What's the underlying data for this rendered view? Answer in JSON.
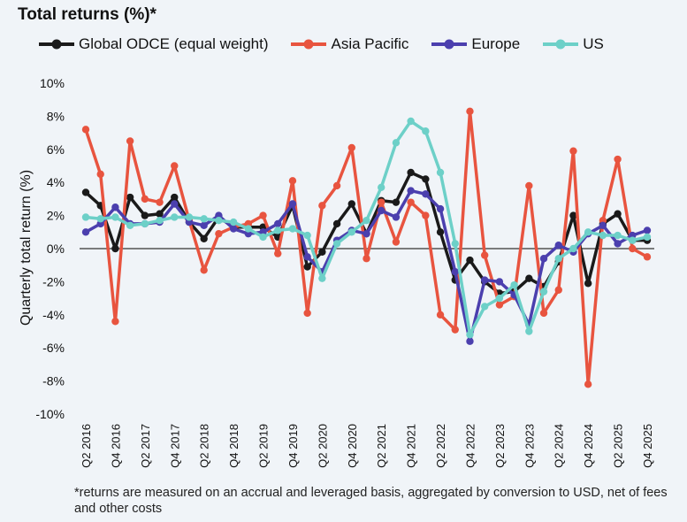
{
  "chart_data": {
    "type": "line",
    "title": "Total returns (%)*",
    "ylabel": "Quarterly total return (%)",
    "xlabel": "",
    "ylim": [
      -10,
      10
    ],
    "yticks": [
      10,
      8,
      6,
      4,
      2,
      0,
      -2,
      -4,
      -6,
      -8,
      -10
    ],
    "ytick_labels": [
      "10%",
      "8%",
      "6%",
      "4%",
      "2%",
      "0%",
      "-2%",
      "-4%",
      "-6%",
      "-8%",
      "-10%"
    ],
    "x": [
      "Q2 2016",
      "Q3 2016",
      "Q4 2016",
      "Q1 2017",
      "Q2 2017",
      "Q3 2017",
      "Q4 2017",
      "Q1 2018",
      "Q2 2018",
      "Q3 2018",
      "Q4 2018",
      "Q1 2019",
      "Q2 2019",
      "Q3 2019",
      "Q4 2019",
      "Q1 2020",
      "Q2 2020",
      "Q3 2020",
      "Q4 2020",
      "Q1 2021",
      "Q2 2021",
      "Q3 2021",
      "Q4 2021",
      "Q1 2022",
      "Q2 2022",
      "Q3 2022",
      "Q4 2022",
      "Q1 2023",
      "Q2 2023",
      "Q3 2023",
      "Q4 2023",
      "Q1 2024",
      "Q2 2024",
      "Q3 2024",
      "Q4 2024",
      "Q1 2025",
      "Q2 2025",
      "Q3 2025",
      "Q4 2025"
    ],
    "xtick_labels": [
      "Q2 2016",
      "Q4 2016",
      "Q2 2017",
      "Q4 2017",
      "Q2 2018",
      "Q4 2018",
      "Q2 2019",
      "Q4 2019",
      "Q2 2020",
      "Q4 2020",
      "Q2 2021",
      "Q4 2021",
      "Q2 2022",
      "Q4 2022",
      "Q2 2023",
      "Q4 2023",
      "Q2 2024",
      "Q4 2024",
      "Q2 2025",
      "Q4 2025"
    ],
    "legend_position": "top",
    "series": [
      {
        "name": "Global ODCE (equal weight)",
        "color": "#1a1a1a",
        "values": [
          3.4,
          2.6,
          0.0,
          3.1,
          2.0,
          2.1,
          3.1,
          1.6,
          0.6,
          1.9,
          1.3,
          1.3,
          1.3,
          0.7,
          2.6,
          -1.1,
          -0.2,
          1.5,
          2.7,
          0.9,
          2.9,
          2.8,
          4.6,
          4.2,
          1.0,
          -1.9,
          -0.7,
          -2.0,
          -2.7,
          -2.6,
          -1.8,
          -2.3,
          -0.8,
          2.0,
          -2.1,
          1.5,
          2.1,
          0.5,
          0.5
        ]
      },
      {
        "name": "Asia Pacific",
        "color": "#e8543f",
        "values": [
          7.2,
          4.5,
          -4.4,
          6.5,
          3.0,
          2.8,
          5.0,
          1.7,
          -1.3,
          0.9,
          1.3,
          1.5,
          2.0,
          -0.3,
          4.1,
          -3.9,
          2.6,
          3.8,
          6.1,
          -0.6,
          2.8,
          0.4,
          2.8,
          2.0,
          -4.0,
          -4.9,
          8.3,
          -0.4,
          -3.4,
          -2.9,
          3.8,
          -3.9,
          -2.5,
          5.9,
          -8.2,
          1.7,
          5.4,
          0.0,
          -0.5
        ]
      },
      {
        "name": "Europe",
        "color": "#4b3fae",
        "values": [
          1.0,
          1.5,
          2.5,
          1.5,
          1.5,
          1.6,
          2.7,
          1.6,
          1.4,
          2.0,
          1.2,
          0.9,
          1.0,
          1.5,
          2.7,
          -0.5,
          -1.4,
          0.5,
          1.1,
          0.9,
          2.3,
          1.9,
          3.5,
          3.3,
          2.4,
          -1.4,
          -5.6,
          -1.9,
          -2.0,
          -2.8,
          -4.6,
          -0.6,
          0.2,
          -0.2,
          0.9,
          1.4,
          0.3,
          0.8,
          1.1
        ]
      },
      {
        "name": "US",
        "color": "#6dd0c8",
        "values": [
          1.9,
          1.8,
          1.9,
          1.4,
          1.5,
          1.7,
          1.9,
          1.9,
          1.8,
          1.7,
          1.6,
          1.2,
          0.7,
          1.1,
          1.2,
          0.8,
          -1.8,
          0.3,
          1.0,
          1.7,
          3.7,
          6.4,
          7.7,
          7.1,
          4.6,
          0.3,
          -5.2,
          -3.5,
          -3.0,
          -2.2,
          -5.0,
          -2.6,
          -0.6,
          0.0,
          1.0,
          0.8,
          0.8,
          0.5,
          0.7
        ]
      }
    ]
  },
  "footnote": "*returns are measured on an accrual and leveraged basis, aggregated by conversion to USD, net of fees and other costs"
}
